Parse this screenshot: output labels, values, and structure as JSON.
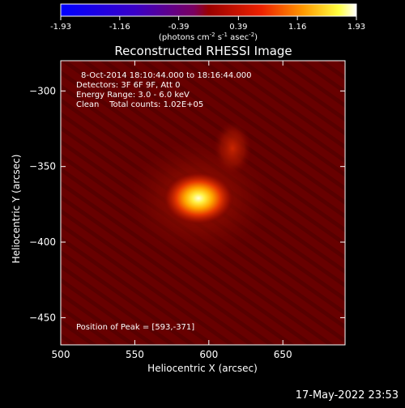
{
  "colorbar": {
    "ticks": [
      "-1.93",
      "-1.16",
      "-0.39",
      "0.39",
      "1.16",
      "1.93"
    ],
    "label_prefix": "(photons cm",
    "label_sup1": "-2",
    "label_mid": " s",
    "label_sup2": "-1",
    "label_mid2": " asec",
    "label_sup3": "-2",
    "label_suffix": ")"
  },
  "chart_data": {
    "type": "heatmap",
    "title": "Reconstructed RHESSI Image",
    "xlabel": "Heliocentric X (arcsec)",
    "ylabel": "Heliocentric Y (arcsec)",
    "xlim": [
      500,
      692
    ],
    "ylim": [
      -468,
      -280
    ],
    "xticks": [
      500,
      550,
      600,
      650
    ],
    "yticks": [
      -300,
      -350,
      -400,
      -450
    ],
    "color_range": [
      -1.93,
      1.93
    ],
    "colormap": "blue-purple-red-yellow-white",
    "sources": [
      {
        "x": 593,
        "y": -371,
        "peak": 1.93
      },
      {
        "x": 616,
        "y": -338,
        "peak": 0.55
      }
    ]
  },
  "annotations": {
    "time_line": "8-Oct-2014 18:10:44.000 to 18:16:44.000",
    "detectors_line": "Detectors: 3F 6F 9F, Att 0",
    "energy_line": "Energy Range: 3.0 - 6.0 keV",
    "method_line": "Clean    Total counts: 1.02E+05",
    "peak_line": "Position of Peak = [593,-371]"
  },
  "timestamp": "17-May-2022 23:53"
}
